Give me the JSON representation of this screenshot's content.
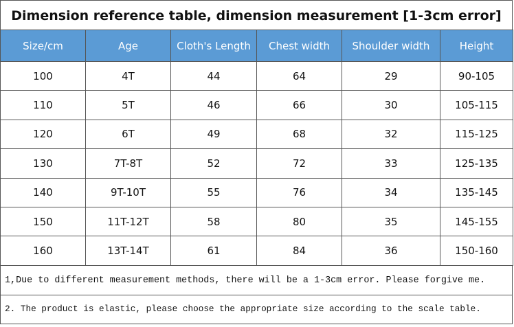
{
  "title": "Dimension reference table, dimension measurement [1-3cm error]",
  "table": {
    "header": [
      "Size/cm",
      "Age",
      "Cloth's Length",
      "Chest  width",
      "Shoulder  width",
      "Height"
    ],
    "rows": [
      [
        100,
        "4T",
        44,
        64,
        29,
        "90-105"
      ],
      [
        110,
        "5T",
        46,
        66,
        30,
        "105-115"
      ],
      [
        120,
        "6T",
        49,
        68,
        32,
        "115-125"
      ],
      [
        130,
        "7T-8T",
        52,
        72,
        33,
        "125-135"
      ],
      [
        140,
        "9T-10T",
        55,
        76,
        34,
        "135-145"
      ],
      [
        150,
        "11T-12T",
        58,
        80,
        35,
        "145-155"
      ],
      [
        160,
        "13T-14T",
        61,
        84,
        36,
        "150-160"
      ]
    ]
  },
  "notes": [
    "1,Due to different measurement methods, there will be a 1-3cm error. Please forgive me.",
    "2. The product is elastic, please choose the appropriate size according to the scale table."
  ]
}
